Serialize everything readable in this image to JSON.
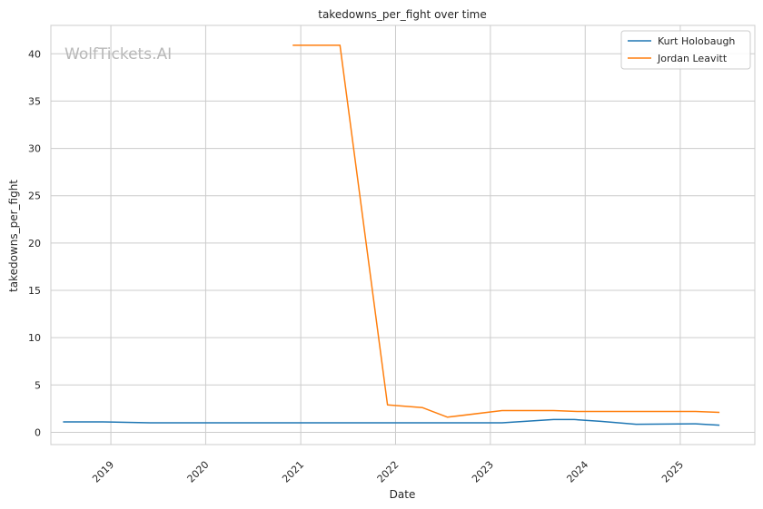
{
  "chart_data": {
    "type": "line",
    "title": "takedowns_per_fight over time",
    "xlabel": "Date",
    "ylabel": "takedowns_per_fight",
    "watermark": "WolfTickets.AI",
    "xlim": [
      "2018-05-15",
      "2025-10-15"
    ],
    "ylim": [
      -1.3,
      43
    ],
    "x_ticks": [
      {
        "date": "2019-01-01",
        "label": "2019"
      },
      {
        "date": "2020-01-01",
        "label": "2020"
      },
      {
        "date": "2021-01-01",
        "label": "2021"
      },
      {
        "date": "2022-01-01",
        "label": "2022"
      },
      {
        "date": "2023-01-01",
        "label": "2023"
      },
      {
        "date": "2024-01-01",
        "label": "2024"
      },
      {
        "date": "2025-01-01",
        "label": "2025"
      }
    ],
    "y_ticks": [
      0,
      5,
      10,
      15,
      20,
      25,
      30,
      35,
      40
    ],
    "grid": true,
    "legend_position": "top-right",
    "series": [
      {
        "name": "Kurt Holobaugh",
        "color": "#1f77b4",
        "points": [
          {
            "x": "2018-07-01",
            "y": 1.1
          },
          {
            "x": "2018-12-01",
            "y": 1.1
          },
          {
            "x": "2019-06-01",
            "y": 1.0
          },
          {
            "x": "2020-06-01",
            "y": 1.0
          },
          {
            "x": "2021-06-01",
            "y": 1.0
          },
          {
            "x": "2022-06-01",
            "y": 1.0
          },
          {
            "x": "2023-02-15",
            "y": 1.0
          },
          {
            "x": "2023-09-01",
            "y": 1.35
          },
          {
            "x": "2023-11-20",
            "y": 1.35
          },
          {
            "x": "2024-03-01",
            "y": 1.15
          },
          {
            "x": "2024-07-15",
            "y": 0.85
          },
          {
            "x": "2025-03-01",
            "y": 0.9
          },
          {
            "x": "2025-06-01",
            "y": 0.75
          }
        ]
      },
      {
        "name": "Jordan Leavitt",
        "color": "#ff7f0e",
        "points": [
          {
            "x": "2020-12-01",
            "y": 40.9
          },
          {
            "x": "2021-06-01",
            "y": 40.9
          },
          {
            "x": "2021-12-01",
            "y": 2.9
          },
          {
            "x": "2022-04-15",
            "y": 2.6
          },
          {
            "x": "2022-07-20",
            "y": 1.6
          },
          {
            "x": "2023-02-15",
            "y": 2.3
          },
          {
            "x": "2023-09-01",
            "y": 2.3
          },
          {
            "x": "2023-12-01",
            "y": 2.2
          },
          {
            "x": "2025-03-01",
            "y": 2.2
          },
          {
            "x": "2025-06-01",
            "y": 2.1
          }
        ]
      }
    ]
  }
}
